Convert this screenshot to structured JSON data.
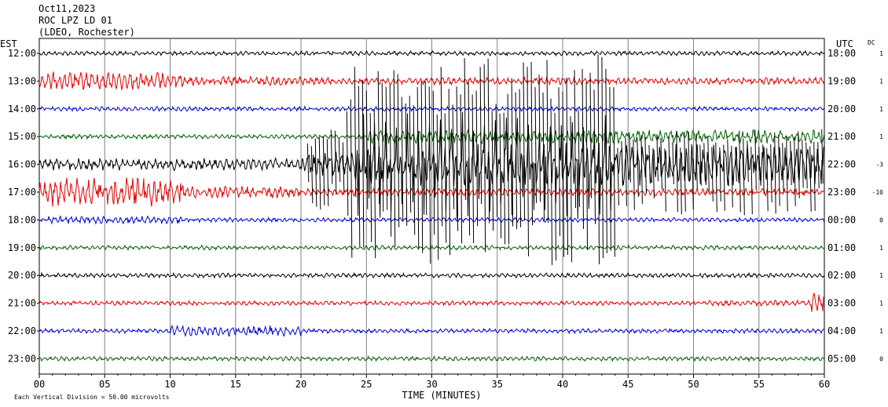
{
  "header": {
    "date": "Oct11,2023",
    "station": "ROC LPZ LD 01",
    "network": "(LDEO, Rochester)"
  },
  "chart_data": {
    "type": "line",
    "title": "ROC LPZ LD 01",
    "left_timezone": "EST",
    "right_timezone": "UTC",
    "dc_label": "DC",
    "xlabel": "TIME (MINUTES)",
    "xlim": [
      0,
      60
    ],
    "x_ticks": [
      "00",
      "05",
      "10",
      "15",
      "20",
      "25",
      "30",
      "35",
      "40",
      "45",
      "50",
      "55",
      "60"
    ],
    "scale_note": "Each Vertical Division =   50.00 microvolts",
    "colors": {
      "black": "#000000",
      "red": "#e00000",
      "blue": "#0000cc",
      "green": "#006000"
    },
    "series": [
      {
        "est": "12:00",
        "utc": "18:00",
        "dc": "1",
        "color": "black"
      },
      {
        "est": "13:00",
        "utc": "19:00",
        "dc": "1",
        "color": "red"
      },
      {
        "est": "14:00",
        "utc": "20:00",
        "dc": "1",
        "color": "blue"
      },
      {
        "est": "15:00",
        "utc": "21:00",
        "dc": "1",
        "color": "green"
      },
      {
        "est": "16:00",
        "utc": "22:00",
        "dc": "-3",
        "color": "black"
      },
      {
        "est": "17:00",
        "utc": "23:00",
        "dc": "-10",
        "color": "red"
      },
      {
        "est": "18:00",
        "utc": "00:00",
        "dc": "0",
        "color": "blue"
      },
      {
        "est": "19:00",
        "utc": "01:00",
        "dc": "1",
        "color": "green"
      },
      {
        "est": "20:00",
        "utc": "02:00",
        "dc": "1",
        "color": "black"
      },
      {
        "est": "21:00",
        "utc": "03:00",
        "dc": "1",
        "color": "red"
      },
      {
        "est": "22:00",
        "utc": "04:00",
        "dc": "1",
        "color": "blue"
      },
      {
        "est": "23:00",
        "utc": "05:00",
        "dc": "0",
        "color": "green"
      }
    ],
    "events": [
      {
        "name": "earthquake",
        "start_min": 20,
        "end_min": 60,
        "row": "16:00"
      },
      {
        "name": "early-noise",
        "start_min": 0,
        "end_min": 11,
        "row": "17:00"
      }
    ]
  }
}
